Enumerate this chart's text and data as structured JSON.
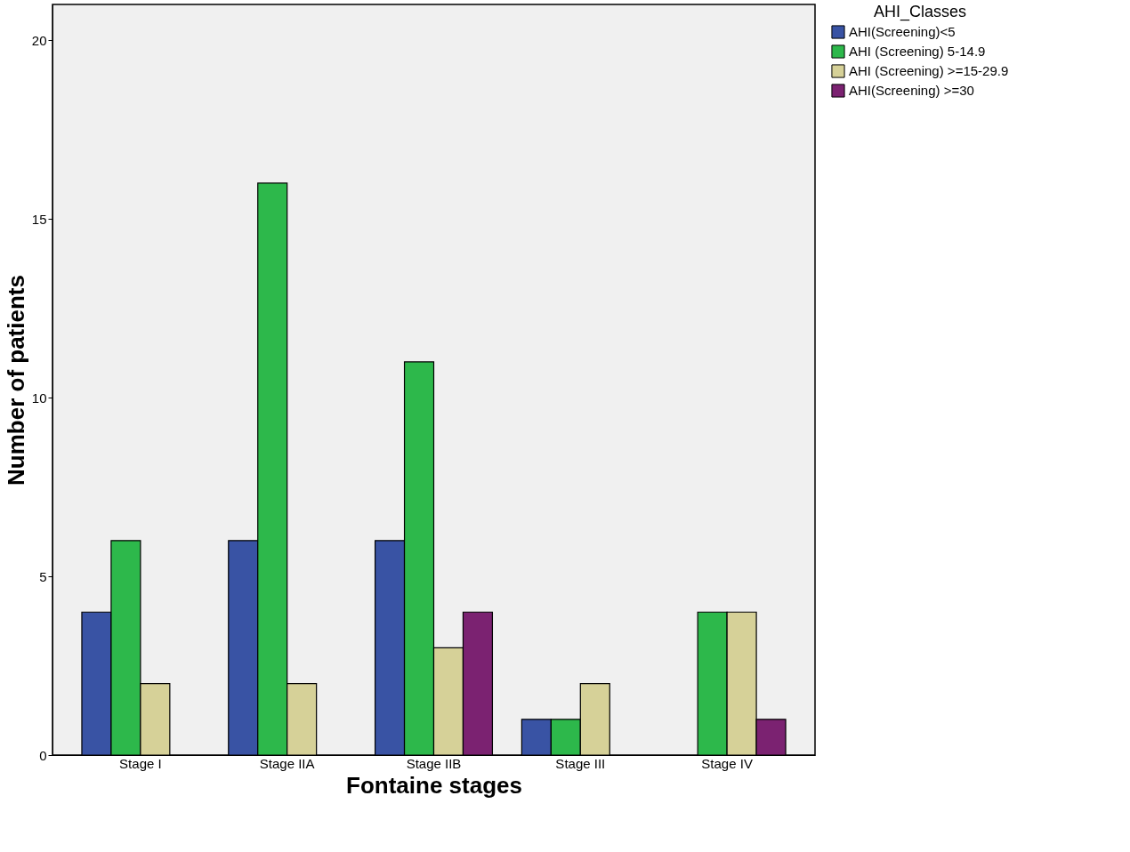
{
  "chart_data": {
    "type": "bar",
    "xlabel": "Fontaine stages",
    "ylabel": "Number of patients",
    "legend_title": "AHI_Classes",
    "categories": [
      "Stage I",
      "Stage IIA",
      "Stage IIB",
      "Stage III",
      "Stage IV"
    ],
    "series": [
      {
        "name": "AHI(Screening)<5",
        "color": "#3953a4",
        "values": [
          4,
          6,
          6,
          1,
          null
        ]
      },
      {
        "name": "AHI (Screening) 5-14.9",
        "color": "#2db84b",
        "values": [
          6,
          16,
          11,
          1,
          4
        ]
      },
      {
        "name": "AHI (Screening) >=15-29.9",
        "color": "#d6d198",
        "values": [
          2,
          2,
          3,
          2,
          4
        ]
      },
      {
        "name": "AHI(Screening) >=30",
        "color": "#7b2271",
        "values": [
          null,
          null,
          4,
          null,
          1
        ]
      }
    ],
    "ylim": [
      0,
      21
    ],
    "yticks": [
      0,
      5,
      10,
      15,
      20
    ],
    "grid": false,
    "legend": "top right"
  }
}
